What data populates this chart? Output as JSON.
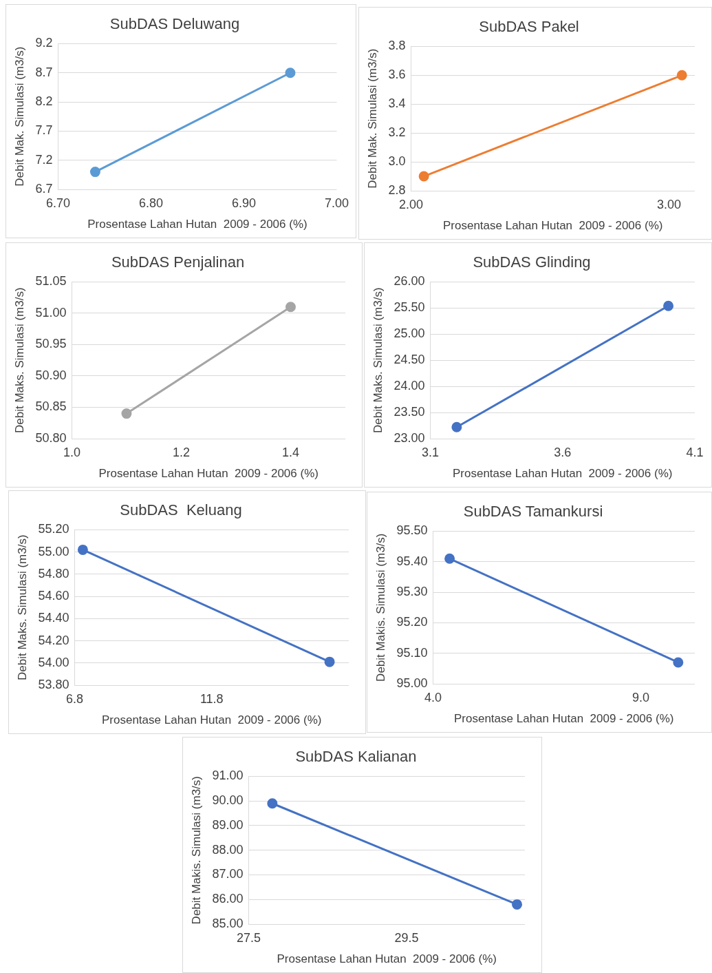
{
  "chart_data": [
    {
      "type": "line",
      "title": "SubDAS Deluwang",
      "xlabel": "Prosentase Lahan Hutan  2009 - 2006 (%)",
      "ylabel": "Debit Mak. Simulasi (m3/s)",
      "x": [
        6.74,
        6.95
      ],
      "series": [
        {
          "color": "#5b9bd5",
          "values": [
            7.0,
            8.7
          ]
        }
      ],
      "xlim": [
        6.7,
        7.0
      ],
      "xticks": [
        {
          "value": 6.7,
          "label": "6.70"
        },
        {
          "value": 6.8,
          "label": "6.80"
        },
        {
          "value": 6.9,
          "label": "6.90"
        },
        {
          "value": 7.0,
          "label": "7.00"
        }
      ],
      "ylim": [
        6.7,
        9.2
      ],
      "yticks": [
        6.7,
        7.2,
        7.7,
        8.2,
        8.7,
        9.2
      ],
      "grid": "y",
      "marker": "circle",
      "legend": false
    },
    {
      "type": "line",
      "title": "SubDAS Pakel",
      "xlabel": "Prosentase Lahan Hutan  2009 - 2006 (%)",
      "ylabel": "Debit Mak. Simulasi (m3/s)",
      "x": [
        2.05,
        3.05
      ],
      "series": [
        {
          "color": "#ed7d31",
          "values": [
            2.9,
            3.6
          ]
        }
      ],
      "xlim": [
        2.0,
        3.1
      ],
      "xticks": [
        {
          "value": 2,
          "label": "2.00"
        },
        {
          "value": 3,
          "label": "3.00"
        }
      ],
      "ylim": [
        2.8,
        3.8
      ],
      "yticks": [
        2.8,
        {
          "value": 3,
          "label": "3.0"
        },
        3.2,
        3.4,
        3.6,
        3.8
      ],
      "grid": "y",
      "marker": "circle",
      "legend": false
    },
    {
      "type": "line",
      "title": "SubDAS Penjalinan",
      "xlabel": "Prosentase Lahan Hutan  2009 - 2006 (%)",
      "ylabel": "Debit Maks. Simulasi (m3/s)",
      "x": [
        1.1,
        1.4
      ],
      "series": [
        {
          "color": "#a5a5a5",
          "values": [
            50.84,
            51.01
          ]
        }
      ],
      "xlim": [
        1.0,
        1.5
      ],
      "xticks": [
        {
          "value": 1,
          "label": "1.0"
        },
        1.2,
        1.4
      ],
      "ylim": [
        50.8,
        51.05
      ],
      "yticks": [
        {
          "value": 50.8,
          "label": "50.80"
        },
        50.85,
        {
          "value": 50.9,
          "label": "50.90"
        },
        50.95,
        {
          "value": 51,
          "label": "51.00"
        },
        51.05
      ],
      "grid": "y",
      "marker": "circle",
      "legend": false
    },
    {
      "type": "line",
      "title": "SubDAS Glinding",
      "xlabel": "Prosentase Lahan Hutan  2009 - 2006 (%)",
      "ylabel": "Debit Maks. Simulasi (m3/s)",
      "x": [
        3.2,
        4.0
      ],
      "series": [
        {
          "color": "#4472c4",
          "values": [
            23.22,
            25.54
          ]
        }
      ],
      "xlim": [
        3.1,
        4.1
      ],
      "xticks": [
        3.1,
        3.6,
        4.1
      ],
      "ylim": [
        23,
        26
      ],
      "yticks": [
        {
          "value": 23,
          "label": "23.00"
        },
        {
          "value": 23.5,
          "label": "23.50"
        },
        {
          "value": 24,
          "label": "24.00"
        },
        {
          "value": 24.5,
          "label": "24.50"
        },
        {
          "value": 25,
          "label": "25.00"
        },
        {
          "value": 25.5,
          "label": "25.50"
        },
        {
          "value": 26,
          "label": "26.00"
        }
      ],
      "grid": "y",
      "marker": "circle",
      "legend": false
    },
    {
      "type": "line",
      "title": "SubDAS  Keluang",
      "xlabel": "Prosentase Lahan Hutan  2009 - 2006 (%)",
      "ylabel": "Debit Maks. Simulasi (m3/s)",
      "x": [
        7.1,
        16.1
      ],
      "series": [
        {
          "color": "#4472c4",
          "values": [
            55.02,
            54.01
          ]
        }
      ],
      "xlim": [
        6.8,
        16.8
      ],
      "xticks": [
        6.8,
        11.8
      ],
      "ylim": [
        53.8,
        55.2
      ],
      "yticks": [
        {
          "value": 53.8,
          "label": "53.80"
        },
        {
          "value": 54,
          "label": "54.00"
        },
        {
          "value": 54.2,
          "label": "54.20"
        },
        {
          "value": 54.4,
          "label": "54.40"
        },
        {
          "value": 54.6,
          "label": "54.60"
        },
        {
          "value": 54.8,
          "label": "54.80"
        },
        {
          "value": 55,
          "label": "55.00"
        },
        {
          "value": 55.2,
          "label": "55.20"
        }
      ],
      "grid": "y",
      "marker": "circle",
      "legend": false
    },
    {
      "type": "line",
      "title": "SubDAS Tamankursi",
      "xlabel": "Prosentase Lahan Hutan  2009 - 2006 (%)",
      "ylabel": "Debit Makis. Simulasi (m3/s)",
      "x": [
        4.4,
        9.9
      ],
      "series": [
        {
          "color": "#4472c4",
          "values": [
            95.41,
            95.07
          ]
        }
      ],
      "xlim": [
        4.0,
        10.3
      ],
      "xticks": [
        {
          "value": 4,
          "label": "4.0"
        },
        {
          "value": 9,
          "label": "9.0"
        }
      ],
      "ylim": [
        95,
        95.5
      ],
      "yticks": [
        {
          "value": 95,
          "label": "95.00"
        },
        {
          "value": 95.1,
          "label": "95.10"
        },
        {
          "value": 95.2,
          "label": "95.20"
        },
        {
          "value": 95.3,
          "label": "95.30"
        },
        {
          "value": 95.4,
          "label": "95.40"
        },
        {
          "value": 95.5,
          "label": "95.50"
        }
      ],
      "grid": "y",
      "marker": "circle",
      "legend": false
    },
    {
      "type": "line",
      "title": "SubDAS Kalianan",
      "xlabel": "Prosentase Lahan Hutan  2009 - 2006 (%)",
      "ylabel": "Debit Makis. Simulasi (m3/s)",
      "x": [
        27.8,
        30.9
      ],
      "series": [
        {
          "color": "#4472c4",
          "values": [
            89.9,
            85.8
          ]
        }
      ],
      "xlim": [
        27.5,
        31.0
      ],
      "xticks": [
        27.5,
        29.5
      ],
      "ylim": [
        85,
        91
      ],
      "yticks": [
        {
          "value": 85,
          "label": "85.00"
        },
        {
          "value": 86,
          "label": "86.00"
        },
        {
          "value": 87,
          "label": "87.00"
        },
        {
          "value": 88,
          "label": "88.00"
        },
        {
          "value": 89,
          "label": "89.00"
        },
        {
          "value": 90,
          "label": "90.00"
        },
        {
          "value": 91,
          "label": "91.00"
        }
      ],
      "grid": "y",
      "marker": "circle",
      "legend": false
    }
  ]
}
